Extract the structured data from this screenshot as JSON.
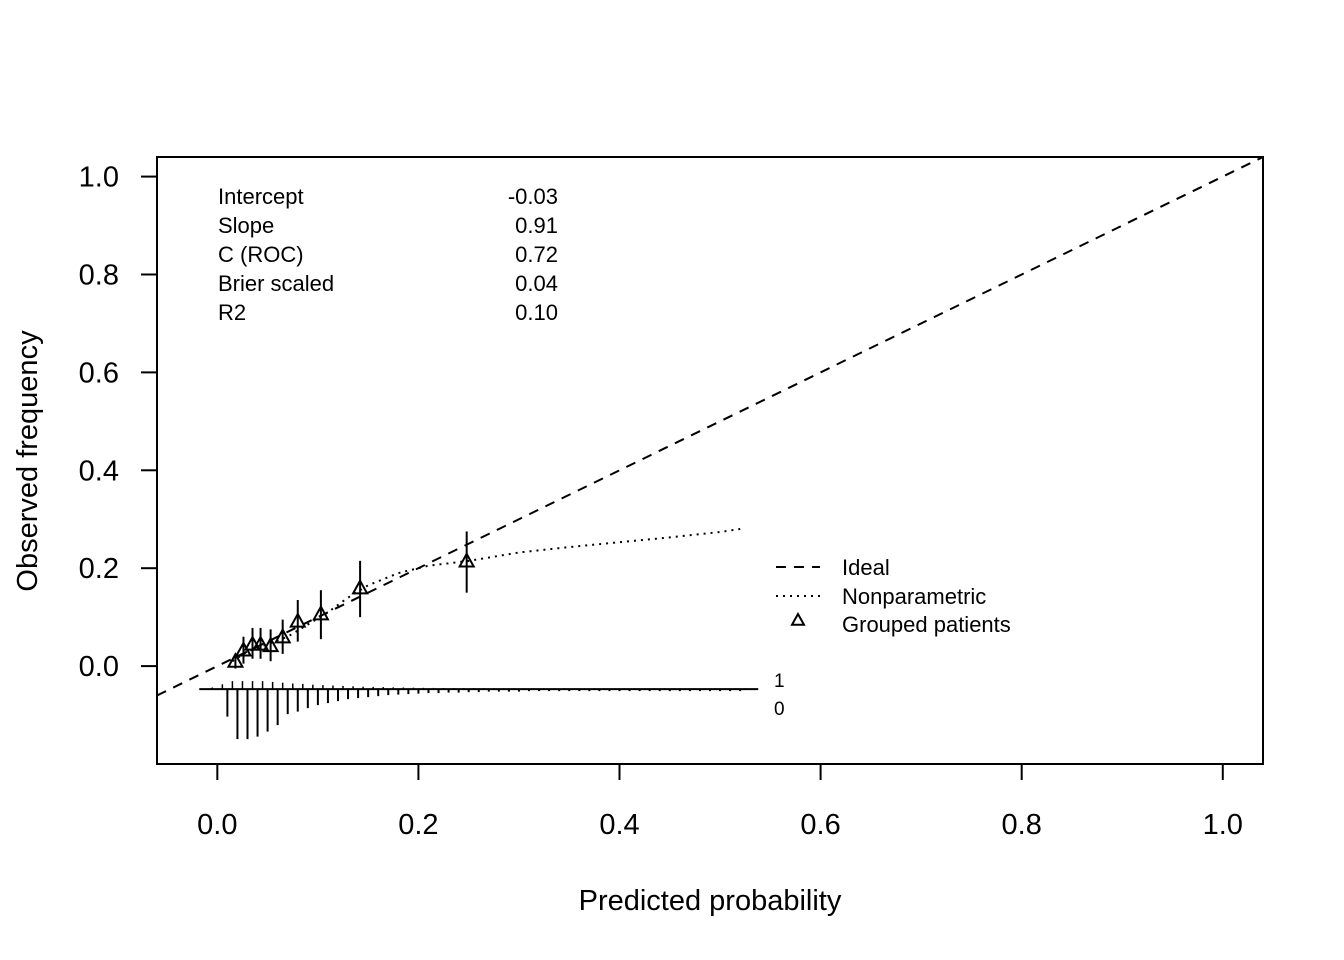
{
  "chart_data": {
    "type": "line",
    "title": "",
    "xlabel": "Predicted probability",
    "ylabel": "Observed frequency",
    "xlim": [
      -0.06,
      1.04
    ],
    "ylim": [
      -0.2,
      1.04
    ],
    "xticks": [
      {
        "value": 0.0,
        "label": "0.0"
      },
      {
        "value": 0.2,
        "label": "0.2"
      },
      {
        "value": 0.4,
        "label": "0.4"
      },
      {
        "value": 0.6,
        "label": "0.6"
      },
      {
        "value": 0.8,
        "label": "0.8"
      },
      {
        "value": 1.0,
        "label": "1.0"
      }
    ],
    "yticks": [
      {
        "value": 0.0,
        "label": "0.0"
      },
      {
        "value": 0.2,
        "label": "0.2"
      },
      {
        "value": 0.4,
        "label": "0.4"
      },
      {
        "value": 0.6,
        "label": "0.6"
      },
      {
        "value": 0.8,
        "label": "0.8"
      },
      {
        "value": 1.0,
        "label": "1.0"
      }
    ],
    "stats": [
      {
        "label": "Intercept",
        "value": "-0.03"
      },
      {
        "label": "Slope",
        "value": "0.91"
      },
      {
        "label": "C (ROC)",
        "value": "0.72"
      },
      {
        "label": "Brier scaled",
        "value": "0.04"
      },
      {
        "label": "R2",
        "value": "0.10"
      }
    ],
    "series": [
      {
        "name": "Ideal",
        "style": "dashed",
        "x": [
          -0.06,
          1.04
        ],
        "y": [
          -0.06,
          1.04
        ]
      },
      {
        "name": "Nonparametric",
        "style": "dotted",
        "x": [
          0.015,
          0.03,
          0.05,
          0.07,
          0.09,
          0.11,
          0.13,
          0.15,
          0.18,
          0.21,
          0.25,
          0.3,
          0.35,
          0.4,
          0.45,
          0.5,
          0.52
        ],
        "y": [
          0.01,
          0.03,
          0.045,
          0.06,
          0.085,
          0.11,
          0.14,
          0.165,
          0.19,
          0.205,
          0.215,
          0.232,
          0.243,
          0.253,
          0.263,
          0.274,
          0.28
        ]
      },
      {
        "name": "Grouped patients",
        "style": "triangle-points",
        "x": [
          0.018,
          0.026,
          0.035,
          0.043,
          0.053,
          0.065,
          0.08,
          0.103,
          0.142,
          0.248
        ],
        "y": [
          0.01,
          0.033,
          0.045,
          0.045,
          0.042,
          0.06,
          0.092,
          0.107,
          0.16,
          0.215
        ],
        "ci_low": [
          -0.005,
          0.005,
          0.015,
          0.015,
          0.01,
          0.025,
          0.05,
          0.055,
          0.1,
          0.15
        ],
        "ci_high": [
          0.025,
          0.06,
          0.078,
          0.078,
          0.075,
          0.095,
          0.135,
          0.155,
          0.215,
          0.275
        ]
      }
    ],
    "rug": {
      "labels": [
        "1",
        "0"
      ],
      "baseline_y": -0.047,
      "x_range": [
        -0.01,
        0.53
      ],
      "events": {
        "x": [
          -0.005,
          0.005,
          0.015,
          0.025,
          0.035,
          0.045,
          0.055,
          0.065,
          0.075,
          0.085,
          0.095,
          0.105,
          0.115,
          0.125,
          0.135,
          0.145,
          0.155,
          0.165,
          0.175,
          0.185,
          0.195,
          0.205,
          0.215,
          0.225,
          0.235,
          0.245,
          0.255,
          0.265,
          0.275,
          0.285,
          0.295,
          0.305,
          0.315,
          0.325,
          0.335,
          0.345,
          0.355,
          0.365,
          0.375,
          0.385,
          0.395,
          0.405,
          0.415,
          0.425,
          0.435,
          0.445,
          0.455,
          0.465,
          0.475,
          0.485,
          0.495,
          0.505,
          0.515,
          0.525
        ],
        "freq": [
          0.2,
          0.6,
          1.0,
          1.0,
          1.0,
          1.0,
          0.9,
          0.8,
          0.7,
          0.65,
          0.55,
          0.5,
          0.45,
          0.4,
          0.35,
          0.3,
          0.28,
          0.25,
          0.22,
          0.2,
          0.18,
          0.16,
          0.15,
          0.14,
          0.13,
          0.12,
          0.12,
          0.11,
          0.1,
          0.1,
          0.1,
          0.1,
          0.1,
          0.1,
          0.1,
          0.1,
          0.1,
          0.1,
          0.1,
          0.1,
          0.1,
          0.1,
          0.1,
          0.1,
          0.1,
          0.1,
          0.1,
          0.1,
          0.1,
          0.1,
          0.1,
          0.1,
          0.1,
          0.1
        ]
      },
      "nonevents": {
        "x": [
          0.01,
          0.02,
          0.03,
          0.04,
          0.05,
          0.06,
          0.07,
          0.08,
          0.09,
          0.1,
          0.11,
          0.12,
          0.13,
          0.14,
          0.15,
          0.16,
          0.17,
          0.18,
          0.19,
          0.2,
          0.21,
          0.22,
          0.23,
          0.24,
          0.25,
          0.26,
          0.27,
          0.28,
          0.29,
          0.3,
          0.31,
          0.32,
          0.33,
          0.34,
          0.35,
          0.36,
          0.37,
          0.38,
          0.39,
          0.4,
          0.41,
          0.42,
          0.43,
          0.44,
          0.45,
          0.46,
          0.47,
          0.48,
          0.49,
          0.5,
          0.51,
          0.52
        ],
        "freq": [
          0.55,
          1.0,
          1.0,
          0.95,
          0.85,
          0.72,
          0.5,
          0.45,
          0.38,
          0.32,
          0.28,
          0.24,
          0.2,
          0.18,
          0.16,
          0.14,
          0.12,
          0.11,
          0.1,
          0.09,
          0.08,
          0.08,
          0.07,
          0.07,
          0.06,
          0.06,
          0.05,
          0.05,
          0.05,
          0.05,
          0.04,
          0.04,
          0.04,
          0.04,
          0.04,
          0.04,
          0.04,
          0.04,
          0.04,
          0.04,
          0.04,
          0.04,
          0.04,
          0.04,
          0.04,
          0.04,
          0.04,
          0.04,
          0.04,
          0.04,
          0.04,
          0.04
        ]
      }
    },
    "legend": {
      "position": "right-center",
      "entries": [
        "Ideal",
        "Nonparametric",
        "Grouped patients"
      ]
    }
  }
}
